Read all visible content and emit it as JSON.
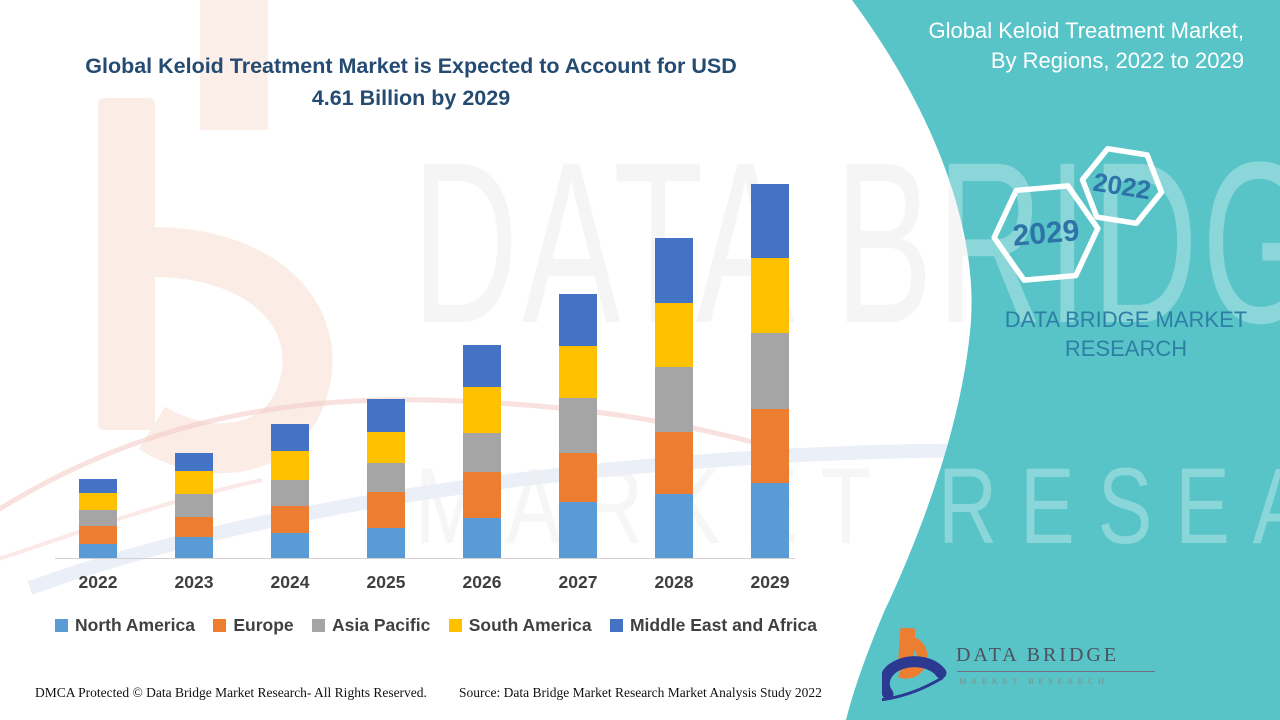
{
  "title": {
    "line1": "Global Keloid Treatment Market is Expected to Account for USD",
    "line2": "4.61 Billion by 2029"
  },
  "side_panel": {
    "heading": "Global Keloid Treatment Market, By Regions, 2022 to 2029",
    "hexagon_small_label": "2022",
    "hexagon_large_label": "2029",
    "brand_text": "DATA BRIDGE MARKET RESEARCH",
    "colors": {
      "teal": "#58C4C7",
      "heading_text": "#FFFFFF",
      "hex_number_blue": "#2E73A8",
      "brand_blue": "#2E7FA6"
    }
  },
  "watermark": {
    "line1": "DATA BRIDGE",
    "line2": "MARKET RESEARCH"
  },
  "chart_data": {
    "type": "bar",
    "stacked": true,
    "title": "Global Keloid Treatment Market is Expected to Account for USD 4.61 Billion by 2029",
    "unit": "USD Billion",
    "categories": [
      "2022",
      "2023",
      "2024",
      "2025",
      "2026",
      "2027",
      "2028",
      "2029"
    ],
    "series": [
      {
        "name": "North America",
        "color": "#5B9BD5",
        "values": [
          0.17,
          0.26,
          0.31,
          0.37,
          0.49,
          0.69,
          0.79,
          0.93
        ]
      },
      {
        "name": "Europe",
        "color": "#ED7D31",
        "values": [
          0.22,
          0.25,
          0.33,
          0.44,
          0.57,
          0.6,
          0.76,
          0.91
        ]
      },
      {
        "name": "Asia Pacific",
        "color": "#A5A5A5",
        "values": [
          0.2,
          0.28,
          0.32,
          0.36,
          0.48,
          0.68,
          0.8,
          0.94
        ]
      },
      {
        "name": "South America",
        "color": "#FFC000",
        "values": [
          0.21,
          0.28,
          0.36,
          0.38,
          0.57,
          0.65,
          0.8,
          0.92
        ]
      },
      {
        "name": "Middle East and Africa",
        "color": "#4472C4",
        "values": [
          0.17,
          0.23,
          0.33,
          0.41,
          0.52,
          0.64,
          0.79,
          0.91
        ]
      }
    ],
    "totals": [
      0.97,
      1.3,
      1.65,
      1.96,
      2.63,
      3.26,
      3.94,
      4.61
    ],
    "highlight_value": "USD 4.61 Billion by 2029",
    "legend_position": "bottom",
    "axes": {
      "y_axis_visible": false,
      "x_axis_baseline": true
    }
  },
  "footer": {
    "dmca": "DMCA Protected © Data Bridge Market Research- All Rights Reserved.",
    "source": "Source: Data Bridge Market Research Market Analysis Study 2022"
  },
  "logo": {
    "name": "DATA BRIDGE",
    "tagline": "MARKET RESEARCH"
  }
}
